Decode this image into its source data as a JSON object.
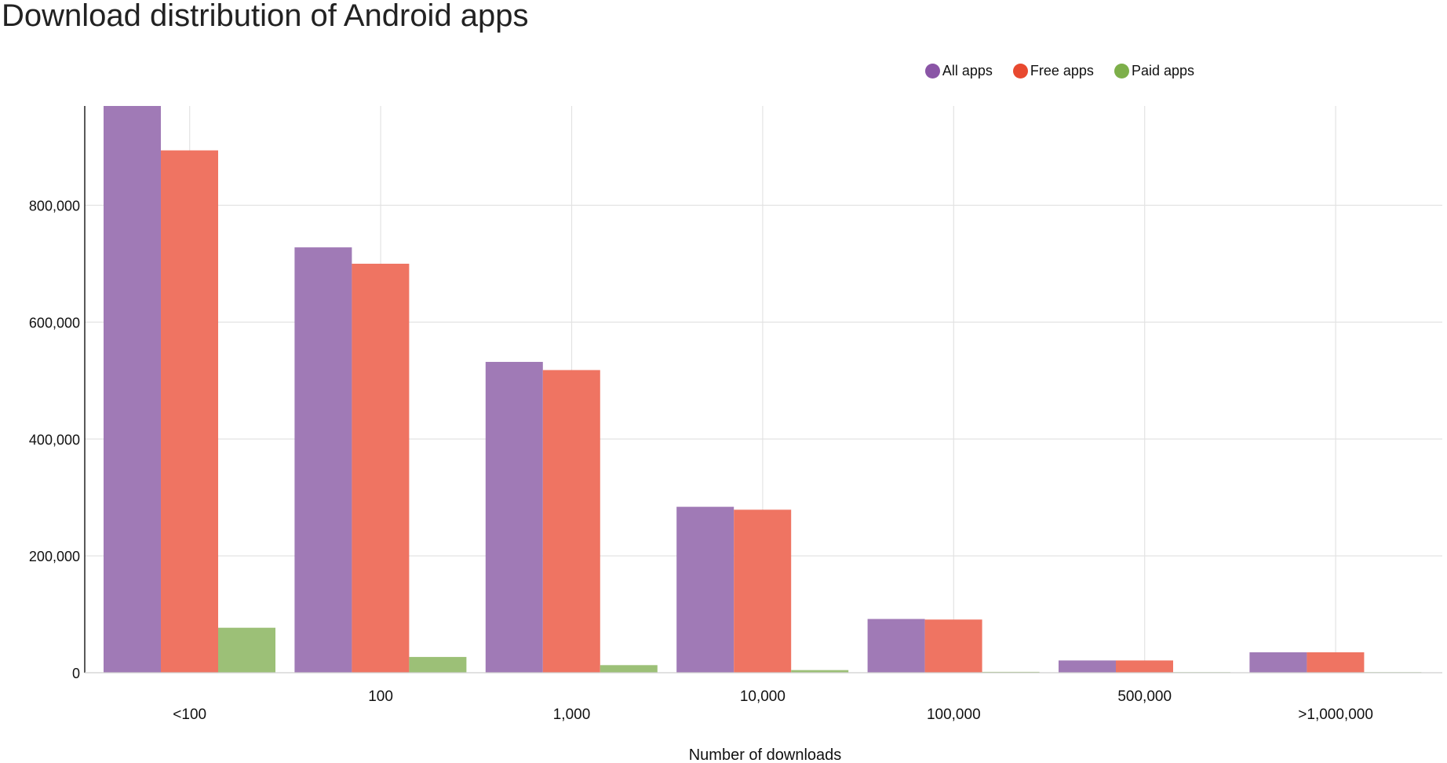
{
  "page_title": "Download distribution of Android apps",
  "colors": {
    "all": "#a07ab6",
    "free": "#ef7462",
    "paid": "#9cc077",
    "legend_all": "#8a55a6",
    "legend_free": "#e8492f",
    "legend_paid": "#7daf4a"
  },
  "chart_data": {
    "type": "bar",
    "title": "Download distribution of Android apps",
    "xlabel": "Number of downloads",
    "ylabel": "",
    "categories": [
      "<100",
      "100",
      "1,000",
      "10,000",
      "100,000",
      "500,000",
      ">1,000,000"
    ],
    "series": [
      {
        "name": "All apps",
        "values": [
          970000,
          728000,
          532000,
          284000,
          92000,
          21000,
          35000
        ]
      },
      {
        "name": "Free apps",
        "values": [
          894000,
          700000,
          518000,
          279000,
          91000,
          21000,
          35000
        ]
      },
      {
        "name": "Paid apps",
        "values": [
          77000,
          27000,
          13000,
          4500,
          1500,
          1000,
          1000
        ]
      }
    ],
    "yticks": [
      "0",
      "200,000",
      "400,000",
      "600,000",
      "800,000"
    ],
    "ylim": [
      0,
      970000
    ],
    "grid": true,
    "legend_position": "top-right"
  }
}
